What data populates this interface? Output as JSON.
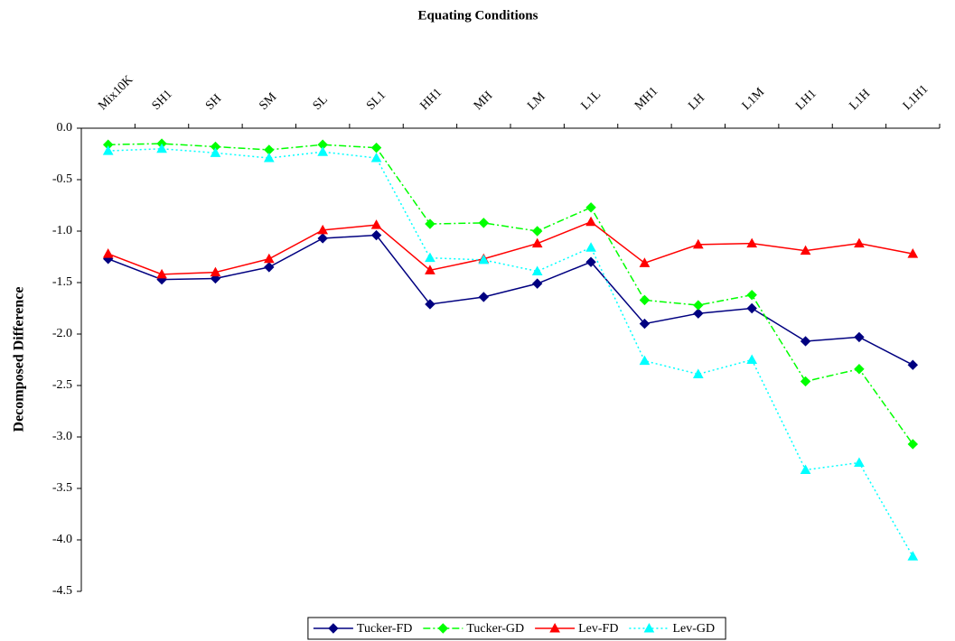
{
  "chart_data": {
    "type": "line",
    "title": "Equating Conditions",
    "y_label": "Decomposed Difference",
    "categories": [
      "Mix10K",
      "SH1",
      "SH",
      "SM",
      "SL",
      "SL1",
      "HH1",
      "MH",
      "LM",
      "L1L",
      "MH1",
      "LH",
      "L1M",
      "LH1",
      "L1H",
      "L1H1"
    ],
    "ylim": [
      -4.5,
      0
    ],
    "yticks": [
      {
        "value": 0,
        "label": "0.0"
      },
      {
        "value": -0.5,
        "label": "-0.5"
      },
      {
        "value": -1,
        "label": "-1.0"
      },
      {
        "value": -1.5,
        "label": "-1.5"
      },
      {
        "value": -2,
        "label": "-2.0"
      },
      {
        "value": -2.5,
        "label": "-2.5"
      },
      {
        "value": -3,
        "label": "-3.0"
      },
      {
        "value": -3.5,
        "label": "-3.5"
      },
      {
        "value": -4,
        "label": "-4.0"
      },
      {
        "value": -4.5,
        "label": "-4.5"
      }
    ],
    "grid": false,
    "legend": "bottom",
    "series": [
      {
        "name": "Tucker-FD",
        "color": "#000080",
        "marker": "diamond",
        "dash": "solid",
        "values": [
          -1.27,
          -1.47,
          -1.46,
          -1.35,
          -1.07,
          -1.04,
          -1.71,
          -1.64,
          -1.51,
          -1.3,
          -1.9,
          -1.8,
          -1.75,
          -2.07,
          -2.03,
          -2.3
        ]
      },
      {
        "name": "Tucker-GD",
        "color": "#00ff00",
        "marker": "diamond",
        "dash": "dashdot",
        "values": [
          -0.16,
          -0.15,
          -0.18,
          -0.21,
          -0.16,
          -0.19,
          -0.93,
          -0.92,
          -1.0,
          -0.77,
          -1.67,
          -1.72,
          -1.62,
          -2.46,
          -2.34,
          -3.07
        ]
      },
      {
        "name": "Lev-FD",
        "color": "#ff0000",
        "marker": "triangle",
        "dash": "solid",
        "values": [
          -1.22,
          -1.42,
          -1.4,
          -1.27,
          -0.99,
          -0.94,
          -1.38,
          -1.27,
          -1.12,
          -0.91,
          -1.31,
          -1.13,
          -1.12,
          -1.19,
          -1.12,
          -1.22
        ]
      },
      {
        "name": "Lev-GD",
        "color": "#00ffff",
        "marker": "triangle",
        "dash": "dotted",
        "values": [
          -0.22,
          -0.2,
          -0.24,
          -0.29,
          -0.23,
          -0.29,
          -1.26,
          -1.28,
          -1.39,
          -1.16,
          -2.26,
          -2.39,
          -2.25,
          -3.32,
          -3.25,
          -4.16
        ]
      }
    ]
  }
}
